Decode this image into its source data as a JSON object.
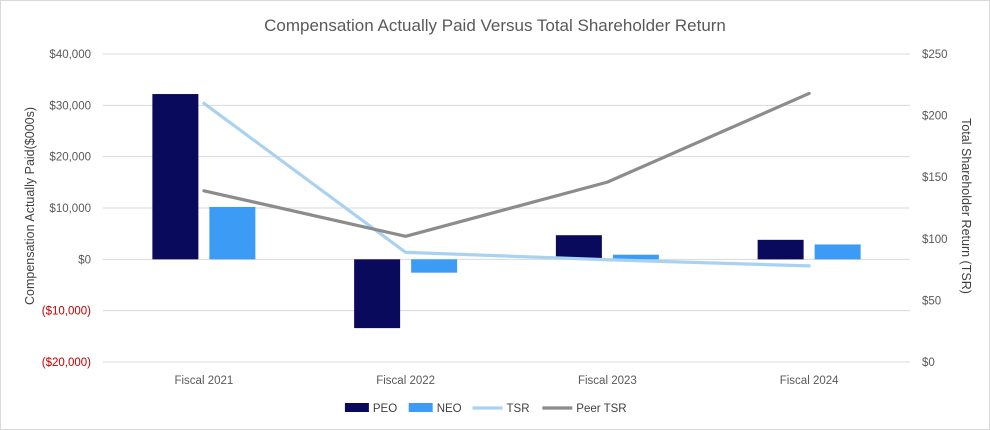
{
  "chart_data": {
    "type": "bar",
    "title": "Compensation Actually Paid Versus Total Shareholder Return",
    "categories": [
      "Fiscal 2021",
      "Fiscal 2022",
      "Fiscal 2023",
      "Fiscal 2024"
    ],
    "ylabel": "Compensation Actually Paid($000s)",
    "y2label": "Total Shareholder Return (TSR)",
    "ylim": [
      -20000,
      40000
    ],
    "y2lim": [
      0,
      250
    ],
    "yticks": [
      {
        "value": 40000,
        "label": "$40,000"
      },
      {
        "value": 30000,
        "label": "$30,000"
      },
      {
        "value": 20000,
        "label": "$20,000"
      },
      {
        "value": 10000,
        "label": "$10,000"
      },
      {
        "value": 0,
        "label": "$0"
      },
      {
        "value": -10000,
        "label": "($10,000)"
      },
      {
        "value": -20000,
        "label": "($20,000)"
      }
    ],
    "y2ticks": [
      {
        "value": 250,
        "label": "$250"
      },
      {
        "value": 200,
        "label": "$200"
      },
      {
        "value": 150,
        "label": "$150"
      },
      {
        "value": 100,
        "label": "$100"
      },
      {
        "value": 50,
        "label": "$50"
      },
      {
        "value": 0,
        "label": "$0"
      }
    ],
    "bar_series": [
      {
        "name": "PEO",
        "color": "#0a0a5c",
        "values": [
          32200,
          -13400,
          4700,
          3800
        ]
      },
      {
        "name": "NEO",
        "color": "#3c9cf5",
        "values": [
          10200,
          -2600,
          900,
          2900
        ]
      }
    ],
    "line_series": [
      {
        "name": "TSR",
        "color": "#a9d2f2",
        "axis": "right",
        "values": [
          210,
          89,
          83,
          78
        ]
      },
      {
        "name": "Peer TSR",
        "color": "#8c8c8c",
        "axis": "right",
        "values": [
          139,
          102,
          146,
          218
        ]
      }
    ],
    "legend_position": "bottom",
    "negative_label_color": "#c00000",
    "grid": true
  }
}
